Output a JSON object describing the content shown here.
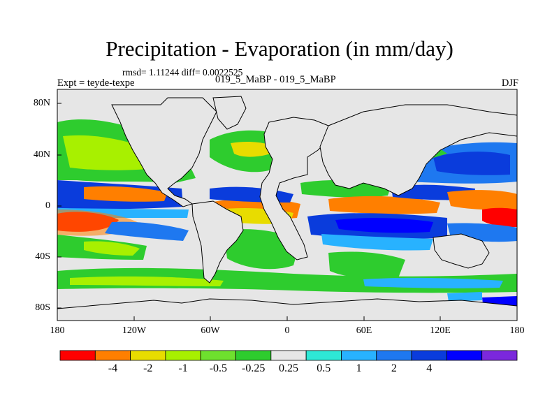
{
  "title": "Precipitation - Evaporation (in mm/day)",
  "stats": "rmsd= 1.11244 diff= 0.0022525",
  "experiment": "Expt = teyde-texpe",
  "difference_label": "019_5_MaBP - 019_5_MaBP",
  "season": "DJF",
  "map": {
    "lat_labels": [
      "80N",
      "40N",
      "0",
      "40S",
      "80S"
    ],
    "lon_labels": [
      "180",
      "120W",
      "60W",
      "0",
      "60E",
      "120E",
      "180"
    ],
    "background": "#e6e6e6",
    "frame_color": "#000000"
  },
  "colorbar": {
    "colors": [
      "#ff0000",
      "#ff7f00",
      "#e8dc00",
      "#a8f000",
      "#6ee02e",
      "#2ecc2e",
      "#e6e6e6",
      "#2ee8d6",
      "#28b2ff",
      "#1e78f0",
      "#0a3cdc",
      "#0000ff",
      "#7b28dc"
    ],
    "labels": [
      "-4",
      "-2",
      "-1",
      "-0.5",
      "-0.25",
      "0.25",
      "0.5",
      "1",
      "2",
      "4"
    ]
  }
}
